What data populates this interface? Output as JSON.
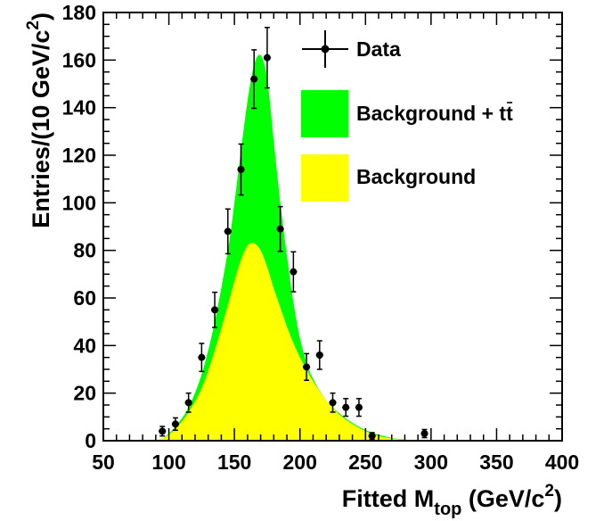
{
  "chart_data": {
    "type": "histogram",
    "xlabel": "Fitted M",
    "xlabel_sub": "top",
    "xlabel_units": " (GeV/c",
    "xlabel_units_sup": "2",
    "xlabel_units_close": ")",
    "ylabel": "Entries/(10 GeV/c",
    "ylabel_sup": "2",
    "ylabel_close": ")",
    "xlim": [
      50,
      400
    ],
    "ylim": [
      0,
      180
    ],
    "x_ticks": [
      50,
      100,
      150,
      200,
      250,
      300,
      350,
      400
    ],
    "y_ticks": [
      0,
      20,
      40,
      60,
      80,
      100,
      120,
      140,
      160,
      180
    ],
    "legend_placement": "top-right",
    "colors": {
      "signal_fill": "#00ff00",
      "background_fill": "#ffff00",
      "data": "#000000"
    },
    "series": [
      {
        "name": "Data",
        "kind": "points_with_errors",
        "x": [
          95,
          105,
          115,
          125,
          135,
          145,
          155,
          165,
          175,
          185,
          195,
          205,
          215,
          225,
          235,
          245,
          255,
          295
        ],
        "y": [
          4,
          7,
          16,
          35,
          55,
          88,
          114,
          152,
          161,
          89,
          71,
          31,
          36,
          16,
          14,
          14,
          2,
          3
        ],
        "err": [
          2,
          2.6,
          4,
          5.9,
          7.4,
          9.4,
          10.7,
          12.3,
          12.7,
          9.4,
          8.4,
          5.6,
          6,
          4,
          3.7,
          3.7,
          1.4,
          1.7
        ]
      },
      {
        "name": "Background + t",
        "name_overbar": "t",
        "kind": "area",
        "x": [
          85,
          95,
          105,
          115,
          125,
          135,
          145,
          150,
          155,
          160,
          165,
          170,
          175,
          180,
          185,
          190,
          195,
          200,
          205,
          210,
          220,
          230,
          240,
          250,
          260,
          270,
          280,
          300
        ],
        "y": [
          0,
          1,
          6,
          14,
          28,
          50,
          80,
          100,
          122,
          143,
          158,
          162,
          152,
          126,
          100,
          78,
          58,
          43,
          33,
          26,
          17,
          11.5,
          7.5,
          4.5,
          2.5,
          1.2,
          0.5,
          0
        ]
      },
      {
        "name": "Background",
        "kind": "area",
        "x": [
          85,
          95,
          105,
          115,
          125,
          135,
          145,
          150,
          155,
          160,
          165,
          170,
          175,
          180,
          185,
          190,
          195,
          200,
          205,
          210,
          220,
          230,
          240,
          250,
          260,
          270,
          280,
          300
        ],
        "y": [
          0,
          1,
          5,
          12,
          22,
          38,
          57,
          67,
          76,
          82,
          83,
          80,
          73,
          64,
          56,
          48,
          41,
          35,
          30,
          25,
          17,
          11,
          7,
          4,
          2,
          1,
          0.4,
          0
        ]
      }
    ]
  }
}
